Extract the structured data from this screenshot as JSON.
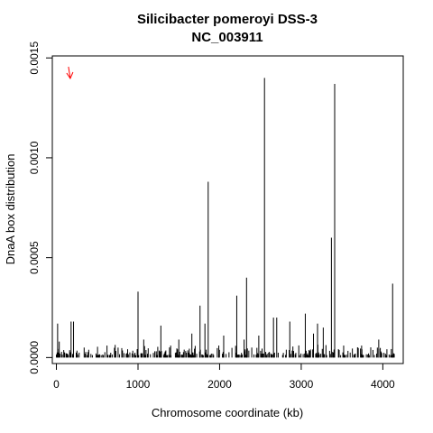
{
  "chart_data": {
    "type": "bar",
    "title": "Silicibacter pomeroyi DSS-3",
    "subtitle": "NC_003911",
    "xlabel": "Chromosome coordinate (kb)",
    "ylabel": "DnaA box distribution",
    "xlim": [
      -50,
      4250
    ],
    "ylim": [
      -3e-05,
      0.00151
    ],
    "x_ticks": [
      0,
      1000,
      2000,
      3000,
      4000
    ],
    "x_tick_labels": [
      "0",
      "1000",
      "2000",
      "3000",
      "4000"
    ],
    "y_ticks": [
      0,
      0.0005,
      0.001,
      0.0015
    ],
    "y_tick_labels": [
      "0.0000",
      "0.0005",
      "0.0010",
      "0.0015"
    ],
    "grid": false,
    "bar_color": "#000000",
    "arrow_color": "#ff0000",
    "origin_arrow_x": 170,
    "peaks": [
      {
        "x": 15,
        "y": 0.00017
      },
      {
        "x": 35,
        "y": 8e-05
      },
      {
        "x": 180,
        "y": 0.00018
      },
      {
        "x": 210,
        "y": 0.00018
      },
      {
        "x": 340,
        "y": 5e-05
      },
      {
        "x": 620,
        "y": 6e-05
      },
      {
        "x": 1000,
        "y": 0.00033
      },
      {
        "x": 1070,
        "y": 9e-05
      },
      {
        "x": 1280,
        "y": 0.00016
      },
      {
        "x": 1400,
        "y": 6e-05
      },
      {
        "x": 1500,
        "y": 9e-05
      },
      {
        "x": 1660,
        "y": 0.00012
      },
      {
        "x": 1760,
        "y": 0.00026
      },
      {
        "x": 1820,
        "y": 0.00017
      },
      {
        "x": 1860,
        "y": 0.00088
      },
      {
        "x": 1990,
        "y": 6e-05
      },
      {
        "x": 2050,
        "y": 0.00011
      },
      {
        "x": 2210,
        "y": 0.00031
      },
      {
        "x": 2300,
        "y": 9e-05
      },
      {
        "x": 2330,
        "y": 0.0004
      },
      {
        "x": 2480,
        "y": 0.00011
      },
      {
        "x": 2550,
        "y": 0.0014
      },
      {
        "x": 2660,
        "y": 0.0002
      },
      {
        "x": 2700,
        "y": 0.0002
      },
      {
        "x": 2860,
        "y": 0.00018
      },
      {
        "x": 3050,
        "y": 0.00022
      },
      {
        "x": 3150,
        "y": 0.00012
      },
      {
        "x": 3200,
        "y": 0.00017
      },
      {
        "x": 3270,
        "y": 0.00015
      },
      {
        "x": 3370,
        "y": 0.0006
      },
      {
        "x": 3410,
        "y": 0.00137
      },
      {
        "x": 3520,
        "y": 6e-05
      },
      {
        "x": 3740,
        "y": 6e-05
      },
      {
        "x": 3950,
        "y": 9e-05
      },
      {
        "x": 4120,
        "y": 0.00037
      }
    ]
  }
}
